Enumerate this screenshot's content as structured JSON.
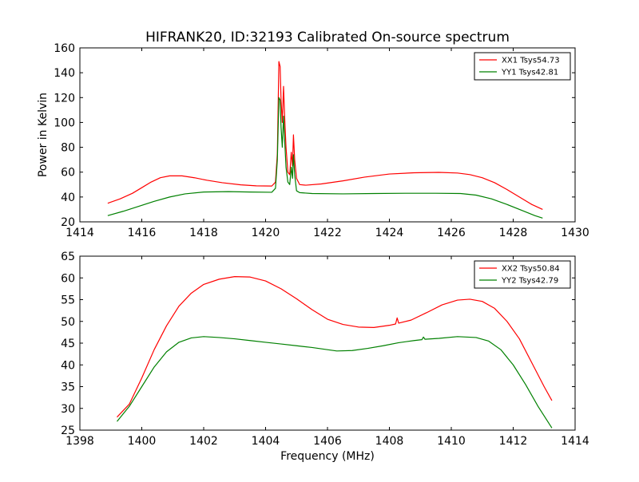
{
  "title": "HIFRANK20, ID:32193 Calibrated On-source spectrum",
  "chart_data": [
    {
      "type": "line",
      "ylabel": "Power in Kelvin",
      "xlabel": "",
      "xlim": [
        1414,
        1430
      ],
      "ylim": [
        20,
        160
      ],
      "xticks": [
        1414,
        1416,
        1418,
        1420,
        1422,
        1424,
        1426,
        1428,
        1430
      ],
      "yticks": [
        20,
        40,
        60,
        80,
        100,
        120,
        140,
        160
      ],
      "grid": false,
      "legend_position": "top-right",
      "series": [
        {
          "name": "XX1 Tsys54.73",
          "color": "#ff0000",
          "points": [
            [
              1414.9,
              35
            ],
            [
              1415.3,
              38.5
            ],
            [
              1415.7,
              43
            ],
            [
              1416.0,
              47.5
            ],
            [
              1416.3,
              52
            ],
            [
              1416.6,
              55.5
            ],
            [
              1416.9,
              57
            ],
            [
              1417.3,
              57
            ],
            [
              1417.7,
              55.5
            ],
            [
              1418.1,
              53.5
            ],
            [
              1418.6,
              51.5
            ],
            [
              1419.2,
              49.8
            ],
            [
              1419.7,
              49
            ],
            [
              1420.2,
              48.8
            ],
            [
              1420.32,
              52
            ],
            [
              1420.38,
              75
            ],
            [
              1420.43,
              149
            ],
            [
              1420.47,
              145
            ],
            [
              1420.5,
              118
            ],
            [
              1420.54,
              100
            ],
            [
              1420.58,
              129
            ],
            [
              1420.62,
              102
            ],
            [
              1420.66,
              80
            ],
            [
              1420.72,
              60
            ],
            [
              1420.78,
              58
            ],
            [
              1420.83,
              76
            ],
            [
              1420.87,
              65
            ],
            [
              1420.9,
              90
            ],
            [
              1420.94,
              70
            ],
            [
              1421.0,
              55
            ],
            [
              1421.1,
              50
            ],
            [
              1421.3,
              49.5
            ],
            [
              1421.8,
              50.5
            ],
            [
              1422.5,
              53
            ],
            [
              1423.2,
              56
            ],
            [
              1424.0,
              58.5
            ],
            [
              1424.8,
              59.5
            ],
            [
              1425.6,
              59.8
            ],
            [
              1426.2,
              59.3
            ],
            [
              1426.6,
              58
            ],
            [
              1427.0,
              55.5
            ],
            [
              1427.4,
              51.5
            ],
            [
              1427.8,
              46
            ],
            [
              1428.2,
              40
            ],
            [
              1428.6,
              34
            ],
            [
              1428.95,
              30
            ]
          ]
        },
        {
          "name": "YY1 Tsys42.81",
          "color": "#008000",
          "points": [
            [
              1414.9,
              25
            ],
            [
              1415.4,
              28.5
            ],
            [
              1415.9,
              32.5
            ],
            [
              1416.4,
              36.5
            ],
            [
              1416.9,
              40
            ],
            [
              1417.4,
              42.5
            ],
            [
              1418.0,
              44
            ],
            [
              1418.8,
              44.3
            ],
            [
              1419.5,
              44
            ],
            [
              1420.2,
              43.8
            ],
            [
              1420.32,
              47
            ],
            [
              1420.38,
              70
            ],
            [
              1420.43,
              120
            ],
            [
              1420.47,
              118
            ],
            [
              1420.5,
              96
            ],
            [
              1420.54,
              80
            ],
            [
              1420.58,
              105
            ],
            [
              1420.62,
              84
            ],
            [
              1420.66,
              64
            ],
            [
              1420.72,
              52
            ],
            [
              1420.78,
              50
            ],
            [
              1420.83,
              64
            ],
            [
              1420.87,
              55
            ],
            [
              1420.9,
              74
            ],
            [
              1420.94,
              58
            ],
            [
              1421.0,
              45
            ],
            [
              1421.1,
              43.5
            ],
            [
              1421.5,
              42.8
            ],
            [
              1422.5,
              42.5
            ],
            [
              1423.5,
              42.8
            ],
            [
              1424.5,
              43
            ],
            [
              1425.5,
              43
            ],
            [
              1426.3,
              42.8
            ],
            [
              1426.8,
              41.5
            ],
            [
              1427.3,
              38.5
            ],
            [
              1427.8,
              34
            ],
            [
              1428.3,
              29
            ],
            [
              1428.7,
              25
            ],
            [
              1428.95,
              23
            ]
          ]
        }
      ]
    },
    {
      "type": "line",
      "ylabel": "",
      "xlabel": "Frequency (MHz)",
      "xlim": [
        1398,
        1414
      ],
      "ylim": [
        25,
        65
      ],
      "xticks": [
        1398,
        1400,
        1402,
        1404,
        1406,
        1408,
        1410,
        1412,
        1414
      ],
      "yticks": [
        25,
        30,
        35,
        40,
        45,
        50,
        55,
        60,
        65
      ],
      "grid": false,
      "legend_position": "top-right",
      "series": [
        {
          "name": "XX2 Tsys50.84",
          "color": "#ff0000",
          "points": [
            [
              1399.2,
              28
            ],
            [
              1399.6,
              31
            ],
            [
              1400.0,
              37
            ],
            [
              1400.4,
              43.5
            ],
            [
              1400.8,
              49
            ],
            [
              1401.2,
              53.5
            ],
            [
              1401.6,
              56.5
            ],
            [
              1402.0,
              58.5
            ],
            [
              1402.5,
              59.7
            ],
            [
              1403.0,
              60.3
            ],
            [
              1403.5,
              60.2
            ],
            [
              1404.0,
              59.3
            ],
            [
              1404.5,
              57.5
            ],
            [
              1405.0,
              55.2
            ],
            [
              1405.5,
              52.7
            ],
            [
              1406.0,
              50.5
            ],
            [
              1406.5,
              49.3
            ],
            [
              1407.0,
              48.7
            ],
            [
              1407.5,
              48.6
            ],
            [
              1408.0,
              49.1
            ],
            [
              1408.2,
              49.4
            ],
            [
              1408.25,
              50.8
            ],
            [
              1408.3,
              49.6
            ],
            [
              1408.7,
              50.3
            ],
            [
              1409.2,
              52
            ],
            [
              1409.7,
              53.8
            ],
            [
              1410.2,
              54.9
            ],
            [
              1410.6,
              55.1
            ],
            [
              1411.0,
              54.6
            ],
            [
              1411.4,
              53
            ],
            [
              1411.8,
              50
            ],
            [
              1412.2,
              46
            ],
            [
              1412.6,
              40.5
            ],
            [
              1413.0,
              35
            ],
            [
              1413.25,
              31.8
            ]
          ]
        },
        {
          "name": "YY2 Tsys42.79",
          "color": "#008000",
          "points": [
            [
              1399.2,
              27
            ],
            [
              1399.6,
              30.5
            ],
            [
              1400.0,
              35
            ],
            [
              1400.4,
              39.5
            ],
            [
              1400.8,
              43
            ],
            [
              1401.2,
              45.2
            ],
            [
              1401.6,
              46.2
            ],
            [
              1402.0,
              46.5
            ],
            [
              1402.5,
              46.3
            ],
            [
              1403.0,
              46
            ],
            [
              1403.5,
              45.6
            ],
            [
              1404.0,
              45.2
            ],
            [
              1404.5,
              44.8
            ],
            [
              1405.0,
              44.4
            ],
            [
              1405.5,
              44
            ],
            [
              1406.0,
              43.5
            ],
            [
              1406.3,
              43.2
            ],
            [
              1406.8,
              43.3
            ],
            [
              1407.3,
              43.8
            ],
            [
              1407.8,
              44.4
            ],
            [
              1408.3,
              45.1
            ],
            [
              1408.8,
              45.6
            ],
            [
              1409.05,
              45.8
            ],
            [
              1409.1,
              46.4
            ],
            [
              1409.15,
              45.9
            ],
            [
              1409.6,
              46.1
            ],
            [
              1410.2,
              46.5
            ],
            [
              1410.8,
              46.3
            ],
            [
              1411.2,
              45.5
            ],
            [
              1411.6,
              43.5
            ],
            [
              1412.0,
              40
            ],
            [
              1412.4,
              35.5
            ],
            [
              1412.8,
              30.5
            ],
            [
              1413.25,
              25.5
            ]
          ]
        }
      ]
    }
  ]
}
